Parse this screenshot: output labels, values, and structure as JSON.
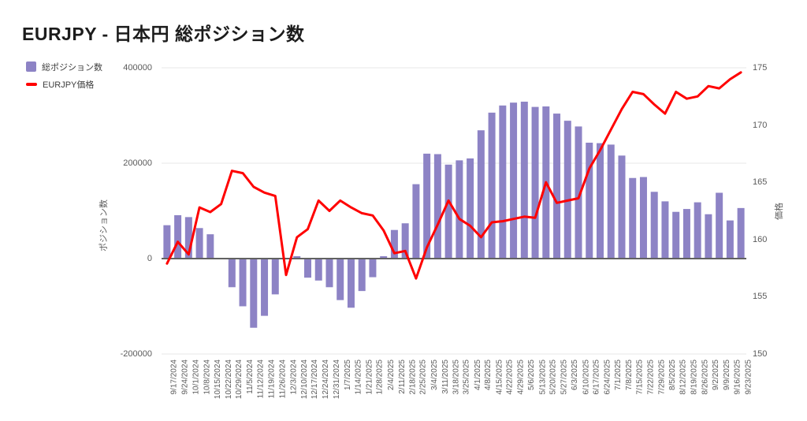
{
  "title": "EURJPY - 日本円 総ポジション数",
  "colors": {
    "bar": "#8d83c5",
    "line": "#ff0000",
    "grid": "#e7e7e7",
    "zero_line": "#616161",
    "title_text": "#1c1c1c",
    "tick_text": "#5a5a5a"
  },
  "axes": {
    "left": {
      "title": "ポジション数",
      "ticks": [
        "400000",
        "200000",
        "0",
        "-200000"
      ]
    },
    "right": {
      "title": "価格",
      "ticks": [
        "175",
        "170",
        "165",
        "160",
        "155",
        "150"
      ]
    }
  },
  "chart_data": {
    "type": "combo",
    "title": "EURJPY - 日本円 総ポジション数",
    "grid": "horizontal-only",
    "legend_position": "top-left",
    "left_axis_label": "ポジション数",
    "right_axis_label": "価格",
    "left_axis_range": [
      -200000,
      400000
    ],
    "right_axis_range": [
      150,
      175
    ],
    "categories": [
      "9/17/2024",
      "9/24/2024",
      "10/1/2024",
      "10/8/2024",
      "10/15/2024",
      "10/22/2024",
      "10/29/2024",
      "11/5/2024",
      "11/12/2024",
      "11/19/2024",
      "11/26/2024",
      "12/3/2024",
      "12/10/2024",
      "12/17/2024",
      "12/24/2024",
      "12/31/2024",
      "1/7/2025",
      "1/14/2025",
      "1/21/2025",
      "1/28/2025",
      "2/4/2025",
      "2/11/2025",
      "2/18/2025",
      "2/25/2025",
      "3/4/2025",
      "3/11/2025",
      "3/18/2025",
      "3/25/2025",
      "4/1/2025",
      "4/8/2025",
      "4/15/2025",
      "4/22/2025",
      "4/29/2025",
      "5/6/2025",
      "5/13/2025",
      "5/20/2025",
      "5/27/2025",
      "6/3/2025",
      "6/10/2025",
      "6/17/2025",
      "6/24/2025",
      "7/1/2025",
      "7/8/2025",
      "7/15/2025",
      "7/22/2025",
      "7/29/2025",
      "8/5/2025",
      "8/12/2025",
      "8/19/2025",
      "8/26/2025",
      "9/2/2025",
      "9/9/2025",
      "9/16/2025",
      "9/23/2025"
    ],
    "series": [
      {
        "name": "総ポジション数",
        "type": "bar",
        "y_axis": "left",
        "color": "#8d83c5",
        "values": [
          70000,
          91000,
          87000,
          64000,
          51000,
          0,
          -60000,
          -100000,
          -145000,
          -120000,
          -75000,
          0,
          5000,
          -40000,
          -46000,
          -60000,
          -87000,
          -103000,
          -68000,
          -39000,
          5000,
          60000,
          74000,
          156000,
          220000,
          219000,
          197000,
          206000,
          210000,
          269000,
          306000,
          321000,
          327000,
          329000,
          318000,
          319000,
          304000,
          289000,
          277000,
          243000,
          242000,
          239000,
          216000,
          169000,
          171000,
          140000,
          120000,
          98000,
          104000,
          118000,
          93000,
          138000,
          80000,
          106000
        ]
      },
      {
        "name": "EURJPY価格",
        "type": "line",
        "y_axis": "right",
        "color": "#ff0000",
        "values": [
          157.9,
          159.8,
          158.7,
          162.8,
          162.4,
          163.1,
          166.0,
          165.8,
          164.6,
          164.1,
          163.8,
          156.9,
          160.2,
          160.9,
          163.4,
          162.5,
          163.4,
          162.8,
          162.3,
          162.1,
          160.8,
          158.8,
          159.0,
          156.6,
          159.3,
          161.3,
          163.4,
          161.8,
          161.2,
          160.2,
          161.5,
          161.6,
          161.8,
          162.0,
          161.9,
          165.0,
          163.2,
          163.4,
          163.6,
          166.2,
          167.8,
          169.6,
          171.4,
          172.9,
          172.7,
          171.8,
          171.0,
          172.9,
          172.3,
          172.5,
          173.4,
          173.2,
          174.0,
          174.6
        ]
      }
    ]
  }
}
